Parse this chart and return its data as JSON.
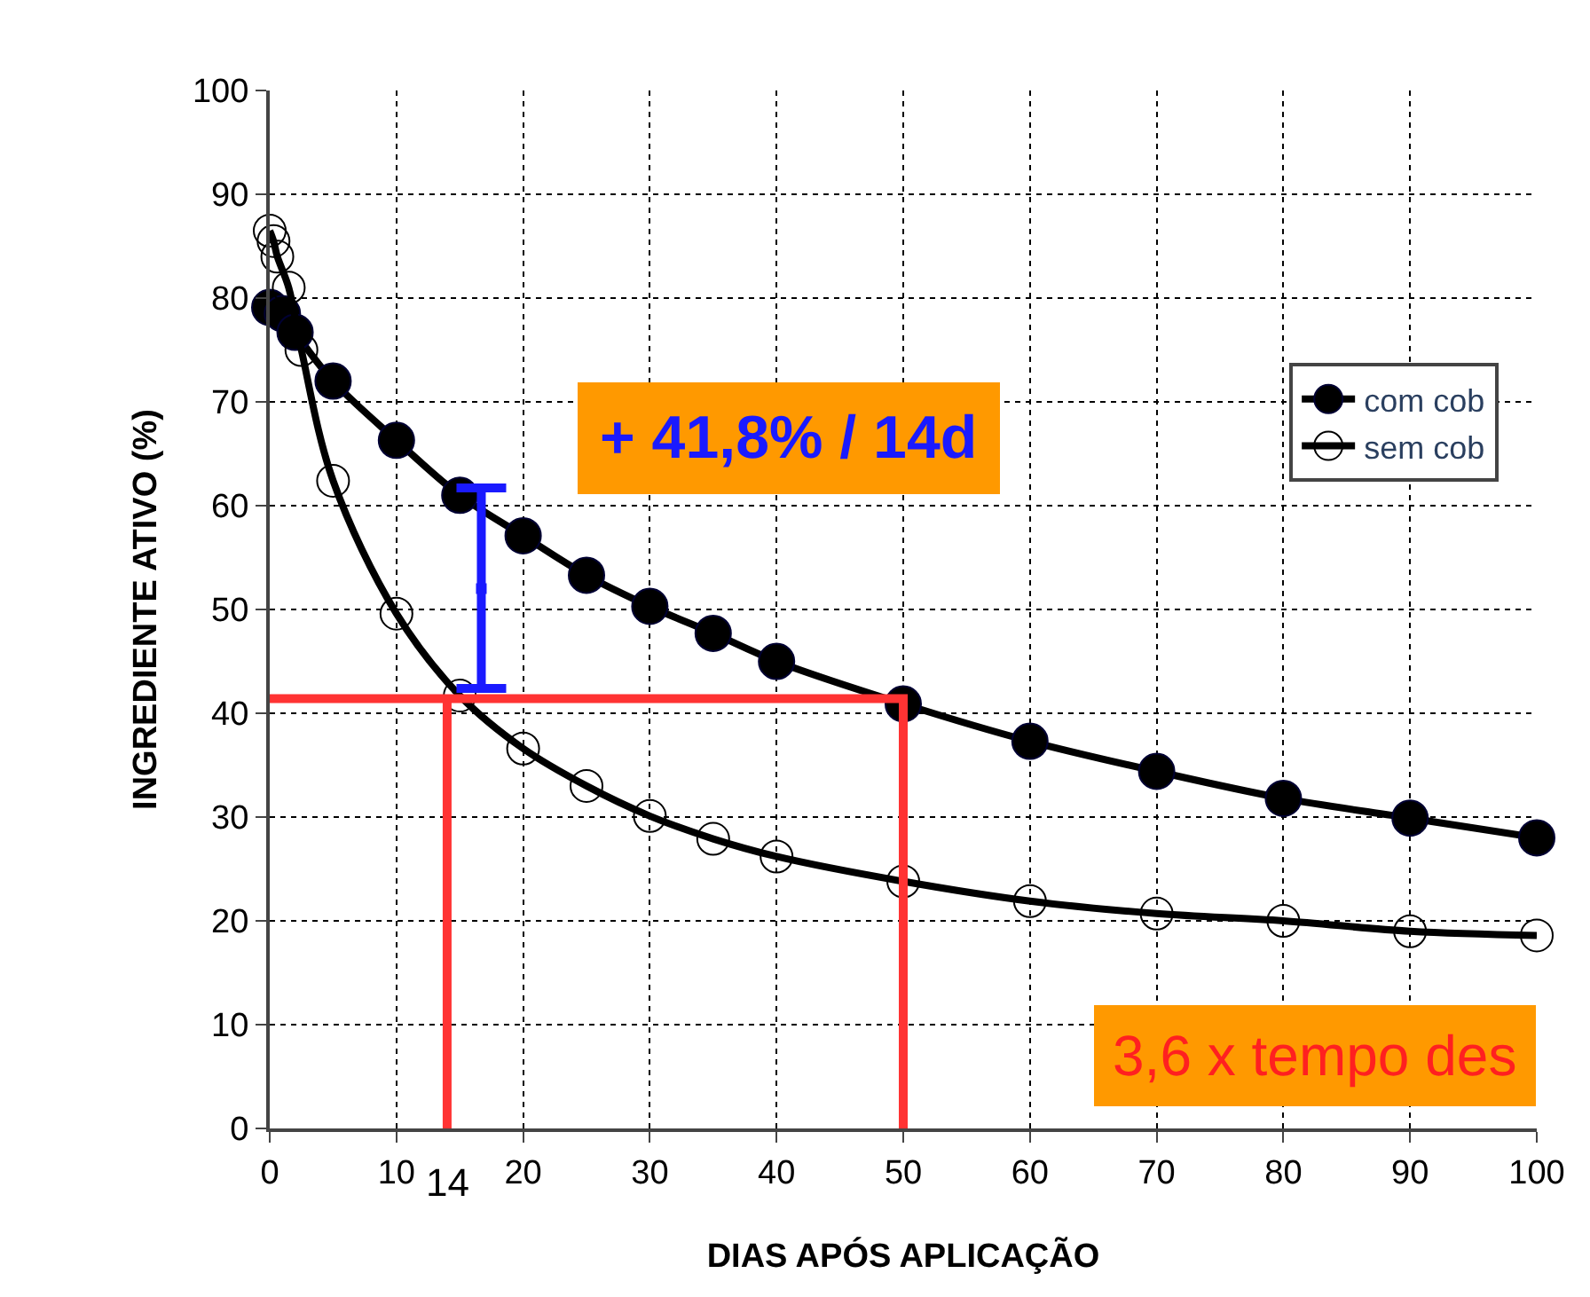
{
  "chart_data": {
    "type": "line",
    "xlabel": "DIAS APÓS APLICAÇÃO",
    "ylabel": "INGREDIENTE ATIVO (%)",
    "xlim": [
      0,
      100
    ],
    "xticks": [
      0,
      10,
      20,
      30,
      40,
      50,
      60,
      70,
      80,
      90,
      100
    ],
    "ylim": [
      0,
      100
    ],
    "yticks": [
      0,
      10,
      20,
      30,
      40,
      50,
      60,
      70,
      80,
      90,
      100
    ],
    "grid": true,
    "legend": "right",
    "marker": "circle",
    "line_style": "solid",
    "series": [
      {
        "name": "com cob",
        "color": "#000000",
        "x": [
          0,
          1,
          2,
          5,
          10,
          15,
          20,
          25,
          30,
          35,
          40,
          50,
          60,
          70,
          80,
          90,
          100
        ],
        "values": [
          79.1,
          78.5,
          76.7,
          72,
          66.3,
          61,
          57.1,
          53.3,
          50.3,
          47.7,
          45,
          40.9,
          37.3,
          34.4,
          31.8,
          29.9,
          28
        ]
      },
      {
        "name": "sem cob",
        "color": "#000000",
        "x": [
          0,
          0.3,
          0.6,
          1.5,
          2.5,
          5,
          10,
          15,
          20,
          25,
          30,
          35,
          40,
          50,
          60,
          70,
          80,
          90,
          100
        ],
        "values": [
          86.5,
          85.5,
          84,
          81,
          75,
          62.4,
          49.6,
          41.7,
          36.6,
          33,
          30.1,
          27.9,
          26.2,
          23.8,
          21.9,
          20.7,
          20,
          19,
          18.6
        ]
      },
      {
        "type": "line",
        "color": "#ff3333",
        "marker": "none",
        "x": [
          14,
          14,
          0,
          50,
          50
        ],
        "values": [
          0,
          41.4,
          41.4,
          41.4,
          0
        ]
      },
      {
        "type": "scatter",
        "color": "#1a1aff",
        "marker": "square",
        "x": [
          16.7
        ],
        "values": [
          52
        ],
        "errors": [
          [
            42.4,
            61.7
          ]
        ]
      }
    ],
    "annotations": [
      "+ 41,8% / 14d",
      {
        "text": "14",
        "x": 14,
        "y": 0
      },
      "3,6 x tempo des"
    ]
  }
}
